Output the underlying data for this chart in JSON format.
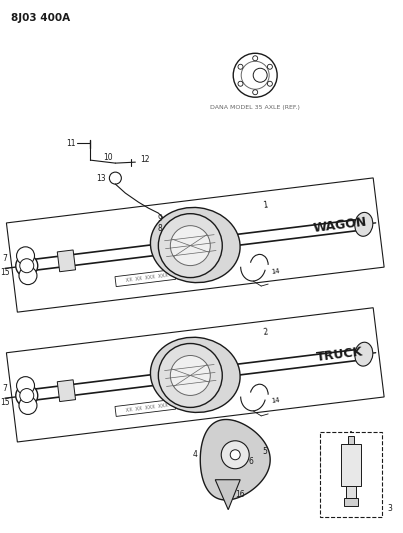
{
  "title": "8J03 400A",
  "bg_color": "#ffffff",
  "line_color": "#1a1a1a",
  "gray_line": "#666666",
  "dana_label": "DANA MODEL 35 AXLE (REF.)",
  "wagon_label": "WAGON",
  "truck_label": "TRUCK",
  "fig_width": 4.03,
  "fig_height": 5.33,
  "dpi": 100
}
